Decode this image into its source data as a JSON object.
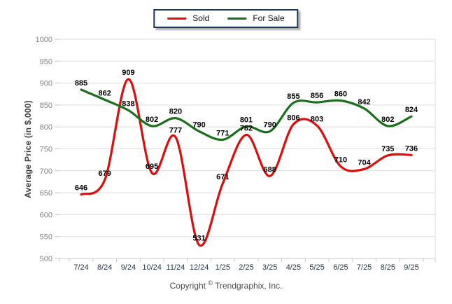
{
  "chart_data": {
    "type": "line",
    "title": "",
    "xlabel": "",
    "ylabel": "Average Price (in $,000)",
    "ylim": [
      500,
      1000
    ],
    "yticks": [
      500,
      550,
      600,
      650,
      700,
      750,
      800,
      850,
      900,
      950,
      1000
    ],
    "categories": [
      "7/24",
      "8/24",
      "9/24",
      "10/24",
      "11/24",
      "12/24",
      "1/25",
      "2/25",
      "3/25",
      "4/25",
      "5/25",
      "6/25",
      "7/25",
      "8/25",
      "9/25"
    ],
    "series": [
      {
        "name": "Sold",
        "color": "#e00b0b",
        "values": [
          646,
          679,
          909,
          695,
          777,
          531,
          671,
          782,
          688,
          806,
          803,
          710,
          704,
          735,
          736
        ]
      },
      {
        "name": "For Sale",
        "color": "#1a701a",
        "values": [
          885,
          862,
          838,
          802,
          820,
          790,
          771,
          801,
          790,
          855,
          856,
          860,
          842,
          802,
          824
        ]
      }
    ],
    "smooth": true,
    "grid": "horizontal",
    "legend_position": "top-center",
    "show_point_labels": true
  },
  "footer": {
    "copyright_prefix": "Copyright",
    "copyright_symbol": "©",
    "copyright_suffix": "Trendgraphix, Inc."
  },
  "colors": {
    "background": "#ffffff",
    "grid": "#dedede",
    "axis": "#c8c8c8",
    "tick_stub": "#b7c7da",
    "y_tick_text": "#8a847c",
    "x_tick_text": "#25364a",
    "point_label": "#000000",
    "legend_border": "#17375e"
  }
}
